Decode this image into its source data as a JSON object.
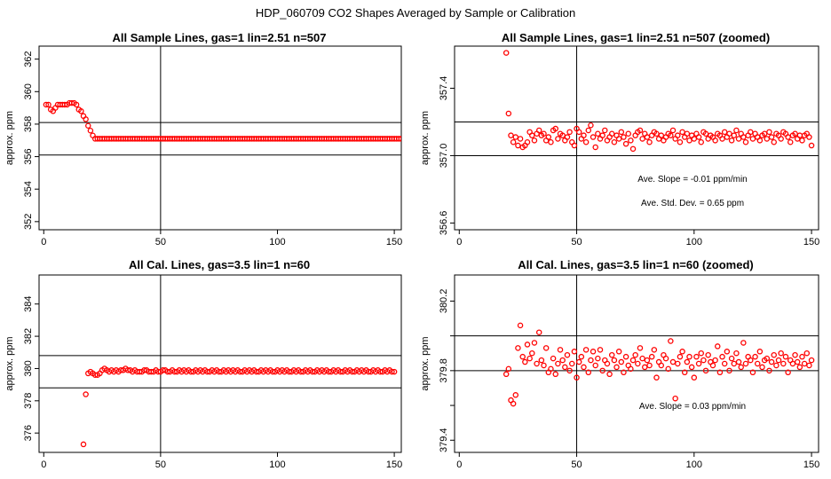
{
  "figure": {
    "title": "HDP_060709  CO2 Shapes Averaged by Sample or Calibration"
  },
  "chart_data": [
    {
      "type": "scatter",
      "title": "All Sample Lines, gas=1 lin=2.51 n=507",
      "xlabel": "",
      "ylabel": "approx. ppm",
      "xlim": [
        -2,
        153
      ],
      "ylim": [
        351.5,
        362.8
      ],
      "xticks": [
        0,
        50,
        100,
        150
      ],
      "yticks": [
        352,
        354,
        356,
        358,
        360,
        362
      ],
      "vline": 50,
      "hlines": [
        356.1,
        358.1
      ],
      "annotations": [],
      "x_start": 1,
      "y": [
        359.2,
        359.2,
        358.9,
        358.8,
        359.0,
        359.2,
        359.2,
        359.2,
        359.2,
        359.2,
        359.3,
        359.3,
        359.3,
        359.2,
        358.9,
        358.8,
        358.5,
        358.3,
        357.9,
        357.6,
        357.3,
        357.1,
        357.1,
        357.1,
        357.1,
        357.1,
        357.1,
        357.1,
        357.1,
        357.1,
        357.1,
        357.1,
        357.1,
        357.1,
        357.1,
        357.1,
        357.1,
        357.1,
        357.1,
        357.1,
        357.1,
        357.1,
        357.1,
        357.1,
        357.1,
        357.1,
        357.1,
        357.1,
        357.1,
        357.1,
        357.1,
        357.1,
        357.1,
        357.1,
        357.1,
        357.1,
        357.1,
        357.1,
        357.1,
        357.1,
        357.1,
        357.1,
        357.1,
        357.1,
        357.1,
        357.1,
        357.1,
        357.1,
        357.1,
        357.1,
        357.1,
        357.1,
        357.1,
        357.1,
        357.1,
        357.1,
        357.1,
        357.1,
        357.1,
        357.1,
        357.1,
        357.1,
        357.1,
        357.1,
        357.1,
        357.1,
        357.1,
        357.1,
        357.1,
        357.1,
        357.1,
        357.1,
        357.1,
        357.1,
        357.1,
        357.1,
        357.1,
        357.1,
        357.1,
        357.1,
        357.1,
        357.1,
        357.1,
        357.1,
        357.1,
        357.1,
        357.1,
        357.1,
        357.1,
        357.1,
        357.1,
        357.1,
        357.1,
        357.1,
        357.1,
        357.1,
        357.1,
        357.1,
        357.1,
        357.1,
        357.1,
        357.1,
        357.1,
        357.1,
        357.1,
        357.1,
        357.1,
        357.1,
        357.1,
        357.1,
        357.1,
        357.1,
        357.1,
        357.1,
        357.1,
        357.1,
        357.1,
        357.1,
        357.1,
        357.1,
        357.1,
        357.1,
        357.1,
        357.1,
        357.1,
        357.1,
        357.1,
        357.1,
        357.1,
        357.1,
        357.1,
        357.1,
        357.1,
        357.1
      ]
    },
    {
      "type": "scatter",
      "title": "All Sample Lines, gas=1 lin=2.51 n=507 (zoomed)",
      "xlabel": "",
      "ylabel": "approx. ppm",
      "xlim": [
        -2,
        153
      ],
      "ylim": [
        356.56,
        357.65
      ],
      "xticks": [
        0,
        50,
        100,
        150
      ],
      "yticks": [
        356.6,
        357.0,
        357.4
      ],
      "ytick_labels": [
        "356.6",
        "357.0",
        "357.4"
      ],
      "vline": 50,
      "hlines": [
        357.0,
        357.2
      ],
      "annotations": [
        "Ave. Slope =  -0.01  ppm/min",
        "Ave. Std. Dev. =  0.65  ppm"
      ],
      "x_start": 20,
      "y": [
        357.61,
        357.25,
        357.12,
        357.08,
        357.11,
        357.06,
        357.1,
        357.05,
        357.06,
        357.08,
        357.14,
        357.12,
        357.09,
        357.13,
        357.15,
        357.12,
        357.13,
        357.09,
        357.11,
        357.08,
        357.15,
        357.16,
        357.1,
        357.13,
        357.12,
        357.09,
        357.11,
        357.14,
        357.08,
        357.06,
        357.16,
        357.14,
        357.1,
        357.12,
        357.08,
        357.15,
        357.18,
        357.11,
        357.05,
        357.13,
        357.1,
        357.12,
        357.15,
        357.09,
        357.11,
        357.13,
        357.08,
        357.12,
        357.1,
        357.14,
        357.11,
        357.07,
        357.13,
        357.09,
        357.04,
        357.12,
        357.14,
        357.15,
        357.1,
        357.13,
        357.11,
        357.08,
        357.12,
        357.14,
        357.13,
        357.1,
        357.12,
        357.09,
        357.11,
        357.13,
        357.12,
        357.15,
        357.1,
        357.12,
        357.08,
        357.14,
        357.11,
        357.13,
        357.09,
        357.12,
        357.1,
        357.13,
        357.11,
        357.08,
        357.14,
        357.13,
        357.1,
        357.12,
        357.11,
        357.09,
        357.13,
        357.12,
        357.1,
        357.14,
        357.11,
        357.13,
        357.09,
        357.12,
        357.15,
        357.1,
        357.13,
        357.11,
        357.08,
        357.12,
        357.14,
        357.1,
        357.13,
        357.11,
        357.09,
        357.12,
        357.13,
        357.1,
        357.14,
        357.11,
        357.08,
        357.13,
        357.12,
        357.1,
        357.14,
        357.13,
        357.11,
        357.08,
        357.12,
        357.13,
        357.1,
        357.12,
        357.09,
        357.12,
        357.13,
        357.11,
        357.06
      ]
    },
    {
      "type": "scatter",
      "title": "All Cal. Lines, gas=3.5 lin=1 n=60",
      "xlabel": "",
      "ylabel": "approx. ppm",
      "xlim": [
        -2,
        153
      ],
      "ylim": [
        374.8,
        385.8
      ],
      "xticks": [
        0,
        50,
        100,
        150
      ],
      "yticks": [
        376,
        378,
        380,
        382,
        384
      ],
      "vline": 50,
      "hlines": [
        378.8,
        380.8
      ],
      "annotations": [],
      "x_start": 17,
      "y": [
        375.3,
        378.4,
        379.7,
        379.8,
        379.7,
        379.6,
        379.6,
        379.7,
        379.9,
        380.0,
        379.9,
        379.8,
        379.9,
        379.8,
        379.9,
        379.8,
        379.9,
        379.9,
        380.0,
        379.9,
        379.9,
        379.8,
        379.9,
        379.8,
        379.8,
        379.8,
        379.9,
        379.9,
        379.8,
        379.8,
        379.8,
        379.9,
        379.8,
        379.8,
        379.9,
        379.9,
        379.8,
        379.8,
        379.9,
        379.8,
        379.8,
        379.9,
        379.8,
        379.9,
        379.8,
        379.9,
        379.8,
        379.8,
        379.9,
        379.8,
        379.9,
        379.8,
        379.9,
        379.8,
        379.8,
        379.9,
        379.8,
        379.9,
        379.8,
        379.8,
        379.9,
        379.8,
        379.9,
        379.8,
        379.9,
        379.8,
        379.9,
        379.8,
        379.8,
        379.9,
        379.8,
        379.9,
        379.8,
        379.9,
        379.8,
        379.8,
        379.9,
        379.8,
        379.9,
        379.8,
        379.9,
        379.8,
        379.8,
        379.9,
        379.8,
        379.9,
        379.8,
        379.9,
        379.8,
        379.8,
        379.9,
        379.8,
        379.9,
        379.8,
        379.8,
        379.9,
        379.8,
        379.9,
        379.8,
        379.8,
        379.9,
        379.8,
        379.9,
        379.8,
        379.9,
        379.8,
        379.8,
        379.9,
        379.8,
        379.9,
        379.8,
        379.8,
        379.9,
        379.8,
        379.9,
        379.8,
        379.8,
        379.9,
        379.8,
        379.9,
        379.8,
        379.9,
        379.8,
        379.8,
        379.9,
        379.8,
        379.9,
        379.8,
        379.8,
        379.9,
        379.8,
        379.9,
        379.8,
        379.8
      ]
    },
    {
      "type": "scatter",
      "title": "All Cal. Lines, gas=3.5 lin=1 n=60 (zoomed)",
      "xlabel": "",
      "ylabel": "approx. ppm",
      "xlim": [
        -2,
        153
      ],
      "ylim": [
        379.33,
        380.35
      ],
      "xticks": [
        0,
        50,
        100,
        150
      ],
      "yticks": [
        379.4,
        379.6,
        379.8,
        380.0,
        380.2
      ],
      "ytick_labels": [
        "379.4",
        "",
        "379.8",
        "",
        "380.2"
      ],
      "vline": 50,
      "hlines": [
        379.8,
        380.0
      ],
      "annotations": [
        "Ave. Slope =  0.03  ppm/min"
      ],
      "x_start": 20,
      "y": [
        379.78,
        379.81,
        379.63,
        379.61,
        379.66,
        379.93,
        380.06,
        379.88,
        379.85,
        379.95,
        379.87,
        379.9,
        379.96,
        379.84,
        380.02,
        379.86,
        379.83,
        379.93,
        379.79,
        379.81,
        379.87,
        379.78,
        379.84,
        379.92,
        379.86,
        379.82,
        379.89,
        379.8,
        379.84,
        379.91,
        379.76,
        379.85,
        379.88,
        379.82,
        379.92,
        379.79,
        379.86,
        379.91,
        379.83,
        379.87,
        379.92,
        379.8,
        379.86,
        379.84,
        379.78,
        379.89,
        379.86,
        379.82,
        379.91,
        379.85,
        379.79,
        379.88,
        379.83,
        379.81,
        379.86,
        379.89,
        379.84,
        379.93,
        379.87,
        379.82,
        379.86,
        379.83,
        379.88,
        379.92,
        379.76,
        379.85,
        379.83,
        379.89,
        379.87,
        379.81,
        379.97,
        379.85,
        379.64,
        379.84,
        379.88,
        379.91,
        379.79,
        379.85,
        379.88,
        379.82,
        379.76,
        379.88,
        379.84,
        379.9,
        379.86,
        379.8,
        379.89,
        379.85,
        379.83,
        379.86,
        379.94,
        379.79,
        379.88,
        379.84,
        379.91,
        379.8,
        379.87,
        379.84,
        379.9,
        379.85,
        379.82,
        379.96,
        379.84,
        379.88,
        379.86,
        379.79,
        379.88,
        379.84,
        379.91,
        379.82,
        379.86,
        379.87,
        379.8,
        379.85,
        379.89,
        379.83,
        379.86,
        379.9,
        379.84,
        379.88,
        379.79,
        379.86,
        379.84,
        379.89,
        379.85,
        379.82,
        379.88,
        379.84,
        379.9,
        379.83,
        379.86
      ]
    }
  ]
}
